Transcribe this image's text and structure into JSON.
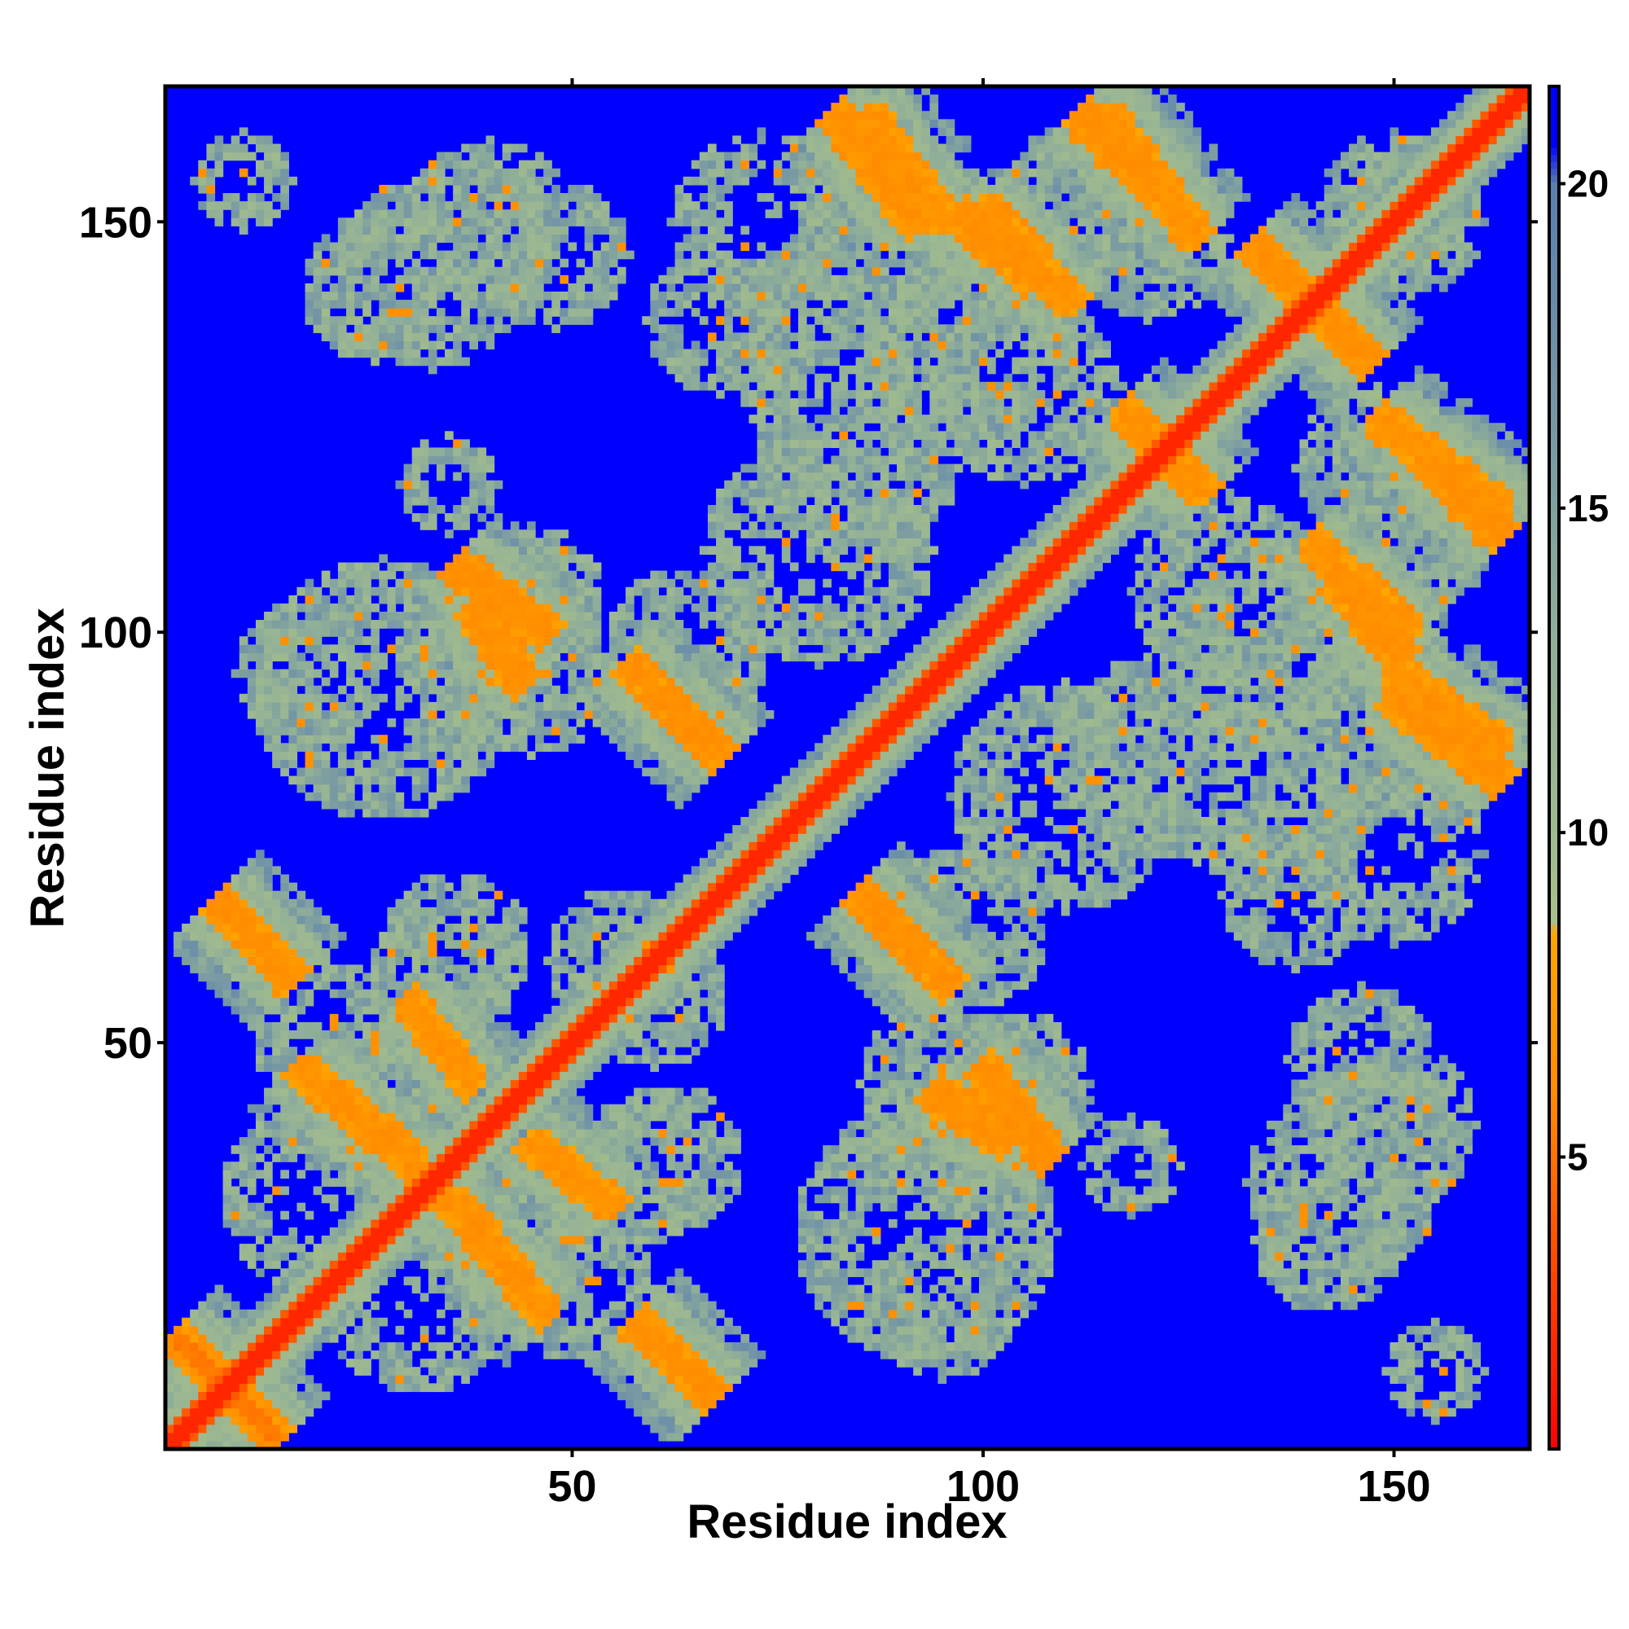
{
  "chart_data": {
    "type": "heatmap",
    "title": "",
    "xlabel": "Residue index",
    "ylabel": "Residue index",
    "xlim": [
      1,
      166
    ],
    "ylim": [
      1,
      166
    ],
    "n_residues": 166,
    "x_ticks": [
      50,
      100,
      150
    ],
    "y_ticks": [
      50,
      100,
      150
    ],
    "colorbar": {
      "ticks": [
        5,
        10,
        15,
        20
      ],
      "range": [
        0.5,
        21.5
      ],
      "stops": [
        {
          "value": 0.5,
          "color": "#ff0000"
        },
        {
          "value": 6.0,
          "color": "#ff8c00"
        },
        {
          "value": 8.5,
          "color": "#ffa500"
        },
        {
          "value": 8.6,
          "color": "#a8c08a"
        },
        {
          "value": 13.0,
          "color": "#8fae99"
        },
        {
          "value": 20.0,
          "color": "#5b7fb0"
        },
        {
          "value": 20.6,
          "color": "#0000ff"
        }
      ]
    },
    "background_value": 21,
    "diagonal": {
      "from": 1,
      "to": 166,
      "value": 1
    },
    "contact_bands": [
      {
        "i": [
          2,
          14
        ],
        "j": [
          2,
          14
        ],
        "anti": true,
        "center_value": 5
      },
      {
        "i": [
          7,
          16
        ],
        "j": [
          58,
          67
        ],
        "anti": true,
        "center_value": 6
      },
      {
        "i": [
          22,
          31
        ],
        "j": [
          35,
          43
        ],
        "anti": true,
        "center_value": 6
      },
      {
        "i": [
          30,
          38
        ],
        "j": [
          45,
          55
        ],
        "anti": true,
        "center_value": 6
      },
      {
        "i": [
          38,
          47
        ],
        "j": [
          17,
          27
        ],
        "anti": true,
        "center_value": 6
      },
      {
        "i": [
          58,
          67
        ],
        "j": [
          7,
          16
        ],
        "anti": true,
        "center_value": 6
      },
      {
        "i": [
          57,
          68
        ],
        "j": [
          85,
          96
        ],
        "anti": true,
        "center_value": 6
      },
      {
        "i": [
          38,
          44
        ],
        "j": [
          94,
          103
        ],
        "anti": true,
        "center_value": 6
      },
      {
        "i": [
          85,
          96
        ],
        "j": [
          57,
          68
        ],
        "anti": true,
        "center_value": 6
      },
      {
        "i": [
          94,
          103
        ],
        "j": [
          38,
          44
        ],
        "anti": true,
        "center_value": 6
      },
      {
        "i": [
          36,
          47
        ],
        "j": [
          100,
          108
        ],
        "anti": true,
        "center_value": 6
      },
      {
        "i": [
          100,
          108
        ],
        "j": [
          36,
          47
        ],
        "anti": true,
        "center_value": 6
      },
      {
        "i": [
          82,
          92
        ],
        "j": [
          150,
          163
        ],
        "anti": true,
        "center_value": 6
      },
      {
        "i": [
          150,
          163
        ],
        "j": [
          82,
          92
        ],
        "anti": true,
        "center_value": 6
      },
      {
        "i": [
          97,
          106
        ],
        "j": [
          143,
          151
        ],
        "anti": true,
        "center_value": 6
      },
      {
        "i": [
          143,
          151
        ],
        "j": [
          97,
          106
        ],
        "anti": true,
        "center_value": 6
      },
      {
        "i": [
          112,
          121
        ],
        "j": [
          154,
          163
        ],
        "anti": true,
        "center_value": 6
      },
      {
        "i": [
          154,
          163
        ],
        "j": [
          112,
          121
        ],
        "anti": true,
        "center_value": 6
      },
      {
        "i": [
          133,
          147
        ],
        "j": [
          133,
          147
        ],
        "anti": true,
        "center_value": 6
      },
      {
        "i": [
          117,
          126
        ],
        "j": [
          118,
          127
        ],
        "anti": true,
        "center_value": 6
      },
      {
        "i": [
          140,
          152
        ],
        "j": [
          100,
          111
        ],
        "anti": true,
        "center_value": 6
      },
      {
        "i": [
          150,
          163
        ],
        "j": [
          86,
          95
        ],
        "anti": true,
        "center_value": 6
      },
      {
        "i": [
          148,
          163
        ],
        "j": [
          115,
          126
        ],
        "anti": true,
        "center_value": 6
      }
    ],
    "halo_regions": [
      {
        "cx": 26,
        "cy": 142,
        "r": 9
      },
      {
        "cx": 40,
        "cy": 150,
        "r": 10
      },
      {
        "cx": 48,
        "cy": 146,
        "r": 9
      },
      {
        "cx": 27,
        "cy": 93,
        "r": 16
      },
      {
        "cx": 45,
        "cy": 95,
        "r": 10
      },
      {
        "cx": 64,
        "cy": 98,
        "r": 10
      },
      {
        "cx": 18,
        "cy": 31,
        "r": 11
      },
      {
        "cx": 20,
        "cy": 51,
        "r": 9
      },
      {
        "cx": 36,
        "cy": 62,
        "r": 9
      },
      {
        "cx": 56,
        "cy": 60,
        "r": 9
      },
      {
        "cx": 58,
        "cy": 34,
        "r": 9
      },
      {
        "cx": 42,
        "cy": 26,
        "r": 9
      },
      {
        "cx": 80,
        "cy": 136,
        "r": 12
      },
      {
        "cx": 88,
        "cy": 148,
        "r": 11
      },
      {
        "cx": 85,
        "cy": 120,
        "r": 12
      },
      {
        "cx": 105,
        "cy": 130,
        "r": 12
      },
      {
        "cx": 110,
        "cy": 80,
        "r": 14
      },
      {
        "cx": 128,
        "cy": 83,
        "r": 12
      },
      {
        "cx": 136,
        "cy": 100,
        "r": 12
      },
      {
        "cx": 152,
        "cy": 112,
        "r": 10
      },
      {
        "cx": 150,
        "cy": 73,
        "r": 11
      },
      {
        "cx": 138,
        "cy": 68,
        "r": 9
      },
      {
        "cx": 95,
        "cy": 38,
        "r": 10
      },
      {
        "cx": 104,
        "cy": 45,
        "r": 9
      },
      {
        "cx": 95,
        "cy": 18,
        "r": 9
      },
      {
        "cx": 144,
        "cy": 33,
        "r": 12
      },
      {
        "cx": 149,
        "cy": 40,
        "r": 8
      },
      {
        "cx": 155,
        "cy": 10,
        "r": 6
      },
      {
        "cx": 118,
        "cy": 35,
        "r": 6
      },
      {
        "cx": 120,
        "cy": 148,
        "r": 10
      },
      {
        "cx": 152,
        "cy": 150,
        "r": 9
      }
    ]
  }
}
